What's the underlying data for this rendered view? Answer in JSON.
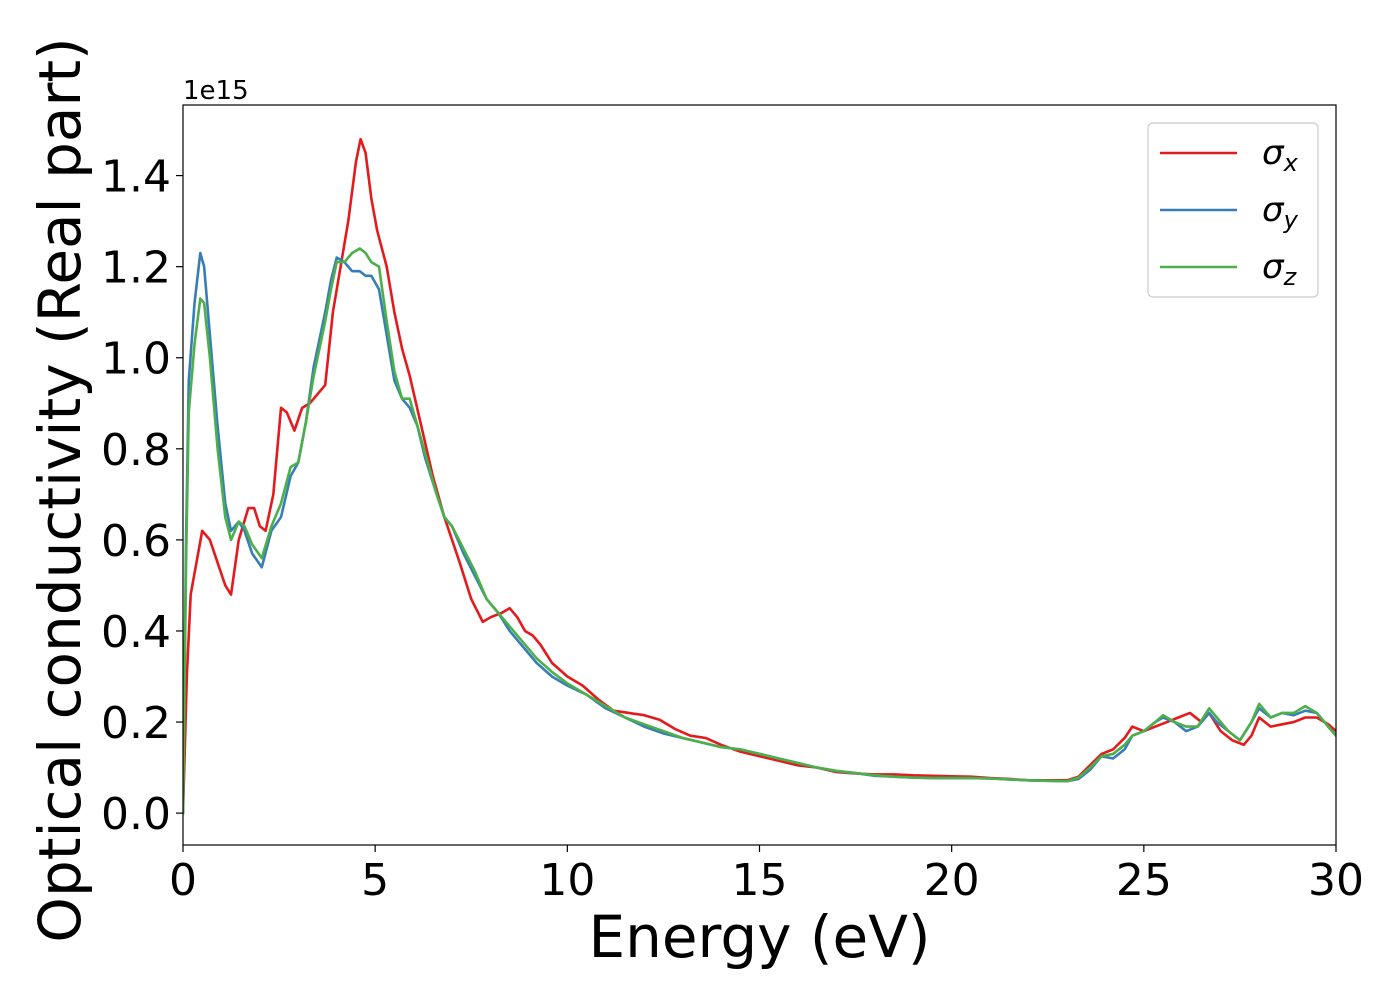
{
  "chart_data": {
    "type": "line",
    "xlabel": "Energy (eV)",
    "ylabel": "Optical conductivity (Real part)",
    "offset_text": "1e15",
    "xlim": [
      0,
      30
    ],
    "ylim": [
      -0.07,
      1.555
    ],
    "x_ticks": [
      0,
      5,
      10,
      15,
      20,
      25,
      30
    ],
    "x_tick_labels": [
      "0",
      "5",
      "10",
      "15",
      "20",
      "25",
      "30"
    ],
    "y_ticks": [
      0.0,
      0.2,
      0.4,
      0.6,
      0.8,
      1.0,
      1.2,
      1.4
    ],
    "y_tick_labels": [
      "0.0",
      "0.2",
      "0.4",
      "0.6",
      "0.8",
      "1.0",
      "1.2",
      "1.4"
    ],
    "grid": false,
    "legend_position": "top-right",
    "series": [
      {
        "name": "σx",
        "label_base": "σ",
        "label_sub": "x",
        "color": "#e41a1c",
        "points": [
          [
            0,
            0
          ],
          [
            0.1,
            0.3
          ],
          [
            0.2,
            0.48
          ],
          [
            0.35,
            0.55
          ],
          [
            0.5,
            0.62
          ],
          [
            0.7,
            0.6
          ],
          [
            0.9,
            0.55
          ],
          [
            1.1,
            0.5
          ],
          [
            1.25,
            0.48
          ],
          [
            1.45,
            0.6
          ],
          [
            1.7,
            0.67
          ],
          [
            1.85,
            0.67
          ],
          [
            2.0,
            0.63
          ],
          [
            2.15,
            0.62
          ],
          [
            2.35,
            0.7
          ],
          [
            2.55,
            0.89
          ],
          [
            2.7,
            0.88
          ],
          [
            2.9,
            0.84
          ],
          [
            3.1,
            0.89
          ],
          [
            3.3,
            0.9
          ],
          [
            3.5,
            0.92
          ],
          [
            3.7,
            0.94
          ],
          [
            3.9,
            1.1
          ],
          [
            4.1,
            1.2
          ],
          [
            4.3,
            1.3
          ],
          [
            4.5,
            1.43
          ],
          [
            4.62,
            1.48
          ],
          [
            4.75,
            1.45
          ],
          [
            4.9,
            1.35
          ],
          [
            5.05,
            1.28
          ],
          [
            5.3,
            1.2
          ],
          [
            5.5,
            1.1
          ],
          [
            5.7,
            1.02
          ],
          [
            5.9,
            0.96
          ],
          [
            6.2,
            0.85
          ],
          [
            6.5,
            0.74
          ],
          [
            6.8,
            0.65
          ],
          [
            7.0,
            0.6
          ],
          [
            7.2,
            0.55
          ],
          [
            7.5,
            0.47
          ],
          [
            7.8,
            0.42
          ],
          [
            8.0,
            0.43
          ],
          [
            8.3,
            0.44
          ],
          [
            8.5,
            0.45
          ],
          [
            8.7,
            0.43
          ],
          [
            8.9,
            0.4
          ],
          [
            9.1,
            0.39
          ],
          [
            9.3,
            0.37
          ],
          [
            9.6,
            0.33
          ],
          [
            10.0,
            0.3
          ],
          [
            10.4,
            0.28
          ],
          [
            10.8,
            0.25
          ],
          [
            11.2,
            0.225
          ],
          [
            11.6,
            0.22
          ],
          [
            12.0,
            0.215
          ],
          [
            12.4,
            0.205
          ],
          [
            12.8,
            0.185
          ],
          [
            13.2,
            0.17
          ],
          [
            13.6,
            0.165
          ],
          [
            14.0,
            0.15
          ],
          [
            14.5,
            0.135
          ],
          [
            15.0,
            0.125
          ],
          [
            15.5,
            0.115
          ],
          [
            16.0,
            0.105
          ],
          [
            16.5,
            0.1
          ],
          [
            17.0,
            0.09
          ],
          [
            17.5,
            0.087
          ],
          [
            18.0,
            0.085
          ],
          [
            18.5,
            0.085
          ],
          [
            19.0,
            0.083
          ],
          [
            19.5,
            0.082
          ],
          [
            20.0,
            0.081
          ],
          [
            20.5,
            0.08
          ],
          [
            21.0,
            0.077
          ],
          [
            21.5,
            0.075
          ],
          [
            22.0,
            0.072
          ],
          [
            22.5,
            0.072
          ],
          [
            23.0,
            0.072
          ],
          [
            23.3,
            0.08
          ],
          [
            23.6,
            0.105
          ],
          [
            23.9,
            0.13
          ],
          [
            24.2,
            0.14
          ],
          [
            24.5,
            0.165
          ],
          [
            24.7,
            0.19
          ],
          [
            25.0,
            0.18
          ],
          [
            25.3,
            0.19
          ],
          [
            25.6,
            0.2
          ],
          [
            25.9,
            0.21
          ],
          [
            26.2,
            0.22
          ],
          [
            26.5,
            0.2
          ],
          [
            26.7,
            0.22
          ],
          [
            27.0,
            0.18
          ],
          [
            27.3,
            0.16
          ],
          [
            27.6,
            0.15
          ],
          [
            27.8,
            0.17
          ],
          [
            28.0,
            0.21
          ],
          [
            28.3,
            0.19
          ],
          [
            28.6,
            0.195
          ],
          [
            28.9,
            0.2
          ],
          [
            29.2,
            0.21
          ],
          [
            29.5,
            0.21
          ],
          [
            29.8,
            0.195
          ],
          [
            30.0,
            0.18
          ]
        ]
      },
      {
        "name": "σy",
        "label_base": "σ",
        "label_sub": "y",
        "color": "#377eb8",
        "points": [
          [
            0,
            0
          ],
          [
            0.08,
            0.6
          ],
          [
            0.15,
            0.95
          ],
          [
            0.3,
            1.12
          ],
          [
            0.45,
            1.23
          ],
          [
            0.55,
            1.2
          ],
          [
            0.7,
            1.05
          ],
          [
            0.9,
            0.85
          ],
          [
            1.1,
            0.68
          ],
          [
            1.25,
            0.62
          ],
          [
            1.45,
            0.64
          ],
          [
            1.6,
            0.62
          ],
          [
            1.8,
            0.57
          ],
          [
            2.05,
            0.54
          ],
          [
            2.3,
            0.62
          ],
          [
            2.55,
            0.65
          ],
          [
            2.8,
            0.74
          ],
          [
            3.0,
            0.77
          ],
          [
            3.2,
            0.86
          ],
          [
            3.4,
            0.98
          ],
          [
            3.7,
            1.1
          ],
          [
            3.85,
            1.17
          ],
          [
            4.0,
            1.22
          ],
          [
            4.2,
            1.21
          ],
          [
            4.4,
            1.19
          ],
          [
            4.6,
            1.19
          ],
          [
            4.75,
            1.18
          ],
          [
            4.9,
            1.18
          ],
          [
            5.1,
            1.15
          ],
          [
            5.3,
            1.05
          ],
          [
            5.5,
            0.95
          ],
          [
            5.7,
            0.91
          ],
          [
            5.9,
            0.89
          ],
          [
            6.1,
            0.85
          ],
          [
            6.3,
            0.78
          ],
          [
            6.6,
            0.7
          ],
          [
            6.8,
            0.65
          ],
          [
            7.0,
            0.63
          ],
          [
            7.3,
            0.57
          ],
          [
            7.6,
            0.52
          ],
          [
            7.9,
            0.47
          ],
          [
            8.2,
            0.44
          ],
          [
            8.5,
            0.4
          ],
          [
            8.8,
            0.37
          ],
          [
            9.2,
            0.33
          ],
          [
            9.6,
            0.3
          ],
          [
            10.0,
            0.28
          ],
          [
            10.5,
            0.26
          ],
          [
            11.0,
            0.23
          ],
          [
            11.5,
            0.21
          ],
          [
            12.0,
            0.19
          ],
          [
            12.5,
            0.175
          ],
          [
            13.0,
            0.165
          ],
          [
            13.5,
            0.155
          ],
          [
            14.0,
            0.145
          ],
          [
            14.5,
            0.14
          ],
          [
            15.0,
            0.13
          ],
          [
            15.5,
            0.12
          ],
          [
            16.0,
            0.11
          ],
          [
            16.5,
            0.1
          ],
          [
            17.0,
            0.092
          ],
          [
            17.5,
            0.088
          ],
          [
            18.0,
            0.082
          ],
          [
            18.5,
            0.08
          ],
          [
            19.0,
            0.078
          ],
          [
            19.5,
            0.077
          ],
          [
            20.0,
            0.077
          ],
          [
            20.5,
            0.077
          ],
          [
            21.0,
            0.076
          ],
          [
            21.5,
            0.074
          ],
          [
            22.0,
            0.072
          ],
          [
            22.5,
            0.071
          ],
          [
            23.0,
            0.07
          ],
          [
            23.3,
            0.075
          ],
          [
            23.6,
            0.095
          ],
          [
            23.9,
            0.125
          ],
          [
            24.2,
            0.12
          ],
          [
            24.5,
            0.14
          ],
          [
            24.7,
            0.17
          ],
          [
            25.0,
            0.18
          ],
          [
            25.3,
            0.2
          ],
          [
            25.5,
            0.21
          ],
          [
            25.8,
            0.2
          ],
          [
            26.1,
            0.18
          ],
          [
            26.4,
            0.19
          ],
          [
            26.7,
            0.22
          ],
          [
            26.9,
            0.2
          ],
          [
            27.2,
            0.18
          ],
          [
            27.5,
            0.16
          ],
          [
            27.8,
            0.2
          ],
          [
            28.0,
            0.23
          ],
          [
            28.3,
            0.21
          ],
          [
            28.6,
            0.22
          ],
          [
            28.9,
            0.215
          ],
          [
            29.2,
            0.225
          ],
          [
            29.5,
            0.22
          ],
          [
            29.8,
            0.19
          ],
          [
            30.0,
            0.17
          ]
        ]
      },
      {
        "name": "σz",
        "label_base": "σ",
        "label_sub": "z",
        "color": "#4daf4a",
        "points": [
          [
            0,
            0
          ],
          [
            0.08,
            0.55
          ],
          [
            0.15,
            0.88
          ],
          [
            0.3,
            1.03
          ],
          [
            0.45,
            1.13
          ],
          [
            0.55,
            1.12
          ],
          [
            0.7,
            1.0
          ],
          [
            0.9,
            0.8
          ],
          [
            1.1,
            0.65
          ],
          [
            1.25,
            0.6
          ],
          [
            1.45,
            0.64
          ],
          [
            1.6,
            0.63
          ],
          [
            1.8,
            0.59
          ],
          [
            2.05,
            0.56
          ],
          [
            2.3,
            0.63
          ],
          [
            2.55,
            0.68
          ],
          [
            2.8,
            0.76
          ],
          [
            3.0,
            0.77
          ],
          [
            3.2,
            0.86
          ],
          [
            3.4,
            0.96
          ],
          [
            3.7,
            1.08
          ],
          [
            3.85,
            1.15
          ],
          [
            4.0,
            1.21
          ],
          [
            4.2,
            1.21
          ],
          [
            4.4,
            1.23
          ],
          [
            4.6,
            1.24
          ],
          [
            4.75,
            1.23
          ],
          [
            4.9,
            1.21
          ],
          [
            5.1,
            1.2
          ],
          [
            5.3,
            1.08
          ],
          [
            5.5,
            0.97
          ],
          [
            5.7,
            0.91
          ],
          [
            5.9,
            0.91
          ],
          [
            6.1,
            0.85
          ],
          [
            6.3,
            0.79
          ],
          [
            6.6,
            0.7
          ],
          [
            6.8,
            0.65
          ],
          [
            7.0,
            0.63
          ],
          [
            7.3,
            0.58
          ],
          [
            7.6,
            0.53
          ],
          [
            7.9,
            0.47
          ],
          [
            8.2,
            0.44
          ],
          [
            8.5,
            0.41
          ],
          [
            8.8,
            0.38
          ],
          [
            9.2,
            0.34
          ],
          [
            9.6,
            0.31
          ],
          [
            10.0,
            0.285
          ],
          [
            10.5,
            0.26
          ],
          [
            11.0,
            0.235
          ],
          [
            11.5,
            0.21
          ],
          [
            12.0,
            0.195
          ],
          [
            12.5,
            0.18
          ],
          [
            13.0,
            0.165
          ],
          [
            13.5,
            0.155
          ],
          [
            14.0,
            0.145
          ],
          [
            14.5,
            0.14
          ],
          [
            15.0,
            0.13
          ],
          [
            15.5,
            0.12
          ],
          [
            16.0,
            0.11
          ],
          [
            16.5,
            0.1
          ],
          [
            17.0,
            0.093
          ],
          [
            17.5,
            0.088
          ],
          [
            18.0,
            0.083
          ],
          [
            18.5,
            0.08
          ],
          [
            19.0,
            0.078
          ],
          [
            19.5,
            0.077
          ],
          [
            20.0,
            0.077
          ],
          [
            20.5,
            0.077
          ],
          [
            21.0,
            0.076
          ],
          [
            21.5,
            0.074
          ],
          [
            22.0,
            0.072
          ],
          [
            22.5,
            0.071
          ],
          [
            23.0,
            0.07
          ],
          [
            23.3,
            0.078
          ],
          [
            23.6,
            0.1
          ],
          [
            23.9,
            0.125
          ],
          [
            24.2,
            0.13
          ],
          [
            24.5,
            0.15
          ],
          [
            24.7,
            0.17
          ],
          [
            25.0,
            0.18
          ],
          [
            25.3,
            0.2
          ],
          [
            25.5,
            0.215
          ],
          [
            25.8,
            0.2
          ],
          [
            26.1,
            0.19
          ],
          [
            26.4,
            0.19
          ],
          [
            26.7,
            0.23
          ],
          [
            26.9,
            0.21
          ],
          [
            27.2,
            0.18
          ],
          [
            27.5,
            0.16
          ],
          [
            27.8,
            0.2
          ],
          [
            28.0,
            0.24
          ],
          [
            28.3,
            0.21
          ],
          [
            28.6,
            0.22
          ],
          [
            28.9,
            0.22
          ],
          [
            29.2,
            0.235
          ],
          [
            29.5,
            0.22
          ],
          [
            29.8,
            0.19
          ],
          [
            30.0,
            0.17
          ]
        ]
      }
    ]
  }
}
